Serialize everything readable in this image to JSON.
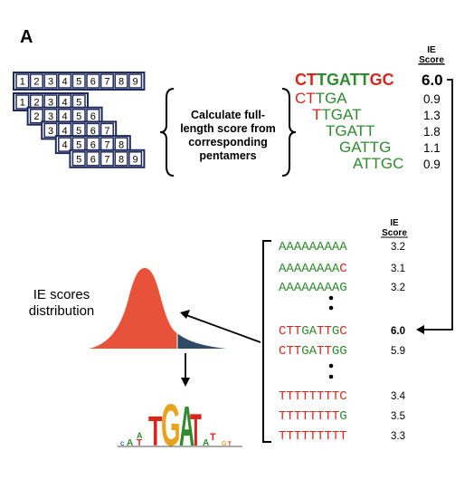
{
  "panel_label": "A",
  "ie_score_header": {
    "line1": "IE",
    "line2": "Score"
  },
  "positions_row": [
    "1",
    "2",
    "3",
    "4",
    "5",
    "6",
    "7",
    "8",
    "9"
  ],
  "pentamer_rows": [
    [
      "1",
      "2",
      "3",
      "4",
      "5"
    ],
    [
      "2",
      "3",
      "4",
      "5",
      "6"
    ],
    [
      "3",
      "4",
      "5",
      "6",
      "7"
    ],
    [
      "4",
      "5",
      "6",
      "7",
      "8"
    ],
    [
      "5",
      "6",
      "7",
      "8",
      "9"
    ]
  ],
  "calc_text": [
    "Calculate full-",
    "length score from",
    "corresponding",
    "pentamers"
  ],
  "full_seq": {
    "red": "CT",
    "green": "TGATT",
    "red2": "GC",
    "score": "6.0"
  },
  "pentamers": [
    {
      "red": "CT",
      "green": "TGA",
      "score": "0.9"
    },
    {
      "red": "T",
      "green": "TGAT",
      "score": "1.3"
    },
    {
      "red": "",
      "green": "TGATT",
      "score": "1.8"
    },
    {
      "red": "",
      "green": "GATTG",
      "score": "1.1"
    },
    {
      "red": "",
      "green": "ATTGC",
      "score": "0.9"
    }
  ],
  "kmer_list": [
    {
      "seq": "AAAAAAAAA",
      "score": "3.2"
    },
    {
      "seq": "AAAAAAAAC",
      "score": "3.1"
    },
    {
      "seq": "AAAAAAAAG",
      "score": "3.2"
    },
    {
      "seq": "CTTGATTGC",
      "score": "6.0"
    },
    {
      "seq": "CTTGATTGG",
      "score": "5.9"
    },
    {
      "seq": "TTTTTTTTC",
      "score": "3.4"
    },
    {
      "seq": "TTTTTTTTG",
      "score": "3.5"
    },
    {
      "seq": "TTTTTTTTT",
      "score": "3.3"
    }
  ],
  "distribution_label": [
    "IE scores",
    "distribution"
  ],
  "logo_letters": "TGAT",
  "colors": {
    "box_border": "#1f2a5c",
    "red": "#d6261d",
    "green": "#2e8b2e",
    "dist_red": "#e8523a",
    "dist_blue": "#2f4a66"
  }
}
